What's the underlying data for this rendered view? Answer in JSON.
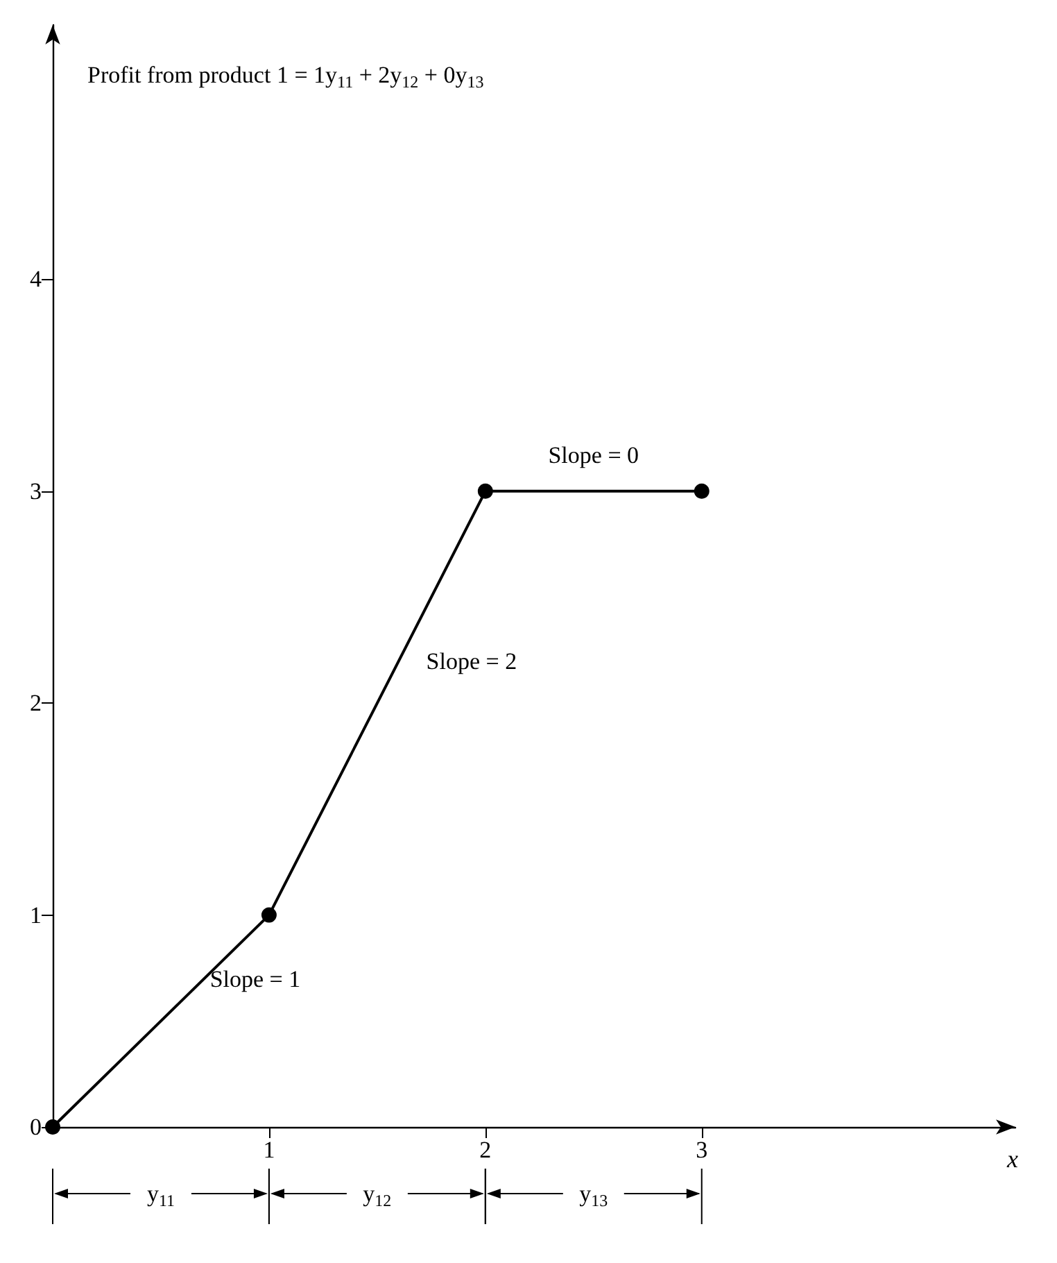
{
  "chart_data": {
    "type": "line",
    "xlabel": "x",
    "x": [
      0,
      1,
      2,
      3
    ],
    "series": [
      {
        "color": "#000000",
        "values": [
          0,
          1,
          3,
          3
        ]
      }
    ],
    "xlim": [
      0,
      4.45
    ],
    "ylim": [
      0,
      5.2
    ],
    "xticks": [
      1,
      2,
      3
    ],
    "yticks": [
      0,
      1,
      2,
      3,
      4
    ],
    "marker": "circle",
    "line_style": "solid",
    "grid": false,
    "annotations": [
      "Profit from product 1 = 1y$_{11}$ + 2y$_{12}$ + 0y$_{13}$",
      "Slope = 1",
      "Slope = 2",
      "Slope = 0",
      "y$_{11}$",
      "y$_{12}$",
      "y$_{13}$"
    ]
  }
}
